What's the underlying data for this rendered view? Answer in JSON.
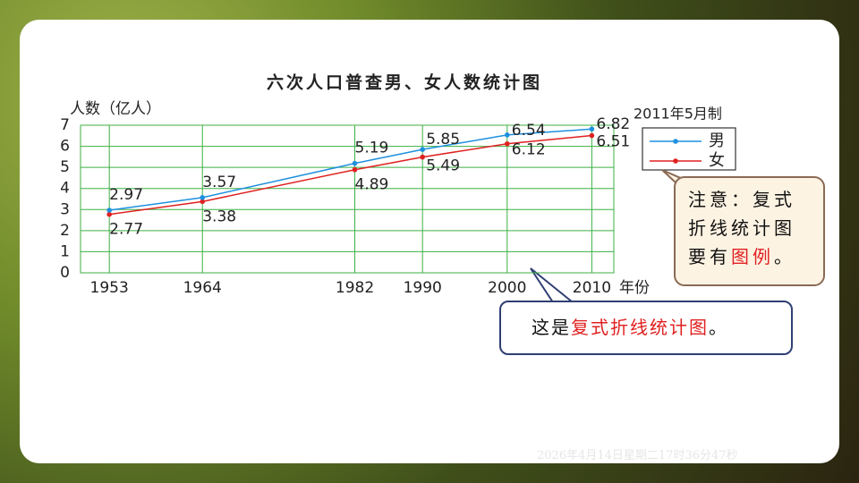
{
  "chart_data": {
    "type": "line",
    "title": "六次人口普查男、女人数统计图",
    "y_label": "人数（亿人）",
    "x_label": "年份",
    "note": "2011年5月制",
    "x": [
      1953,
      1964,
      1982,
      1990,
      2000,
      2010
    ],
    "series": [
      {
        "name": "女",
        "color": "#e02020",
        "values": [
          2.77,
          3.38,
          4.89,
          5.49,
          6.12,
          6.51
        ]
      },
      {
        "name": "男",
        "color": "#1e90e0",
        "values": [
          2.97,
          3.57,
          5.19,
          5.85,
          6.54,
          6.82
        ]
      }
    ],
    "xlim": [
      1949.6,
      2012.6
    ],
    "xticks": [
      1953,
      1964,
      1982,
      1990,
      2000,
      2010
    ],
    "ylim": [
      0,
      7
    ],
    "yticks": [
      0,
      1,
      2,
      3,
      4,
      5,
      6,
      7
    ],
    "grid": true,
    "grid_color": "#3cb043",
    "legend": "right"
  },
  "callouts": [
    {
      "segments": [
        {
          "text": "注意：复式折线统计图要有"
        },
        {
          "text": "图例",
          "color": "#e02020"
        },
        {
          "text": "。"
        }
      ]
    },
    {
      "segments": [
        {
          "text": "这是"
        },
        {
          "text": "复式折线统计图",
          "color": "#e02020"
        },
        {
          "text": "。"
        }
      ]
    }
  ],
  "timestamp": "2026年4月14日星期二17时36分47秒"
}
